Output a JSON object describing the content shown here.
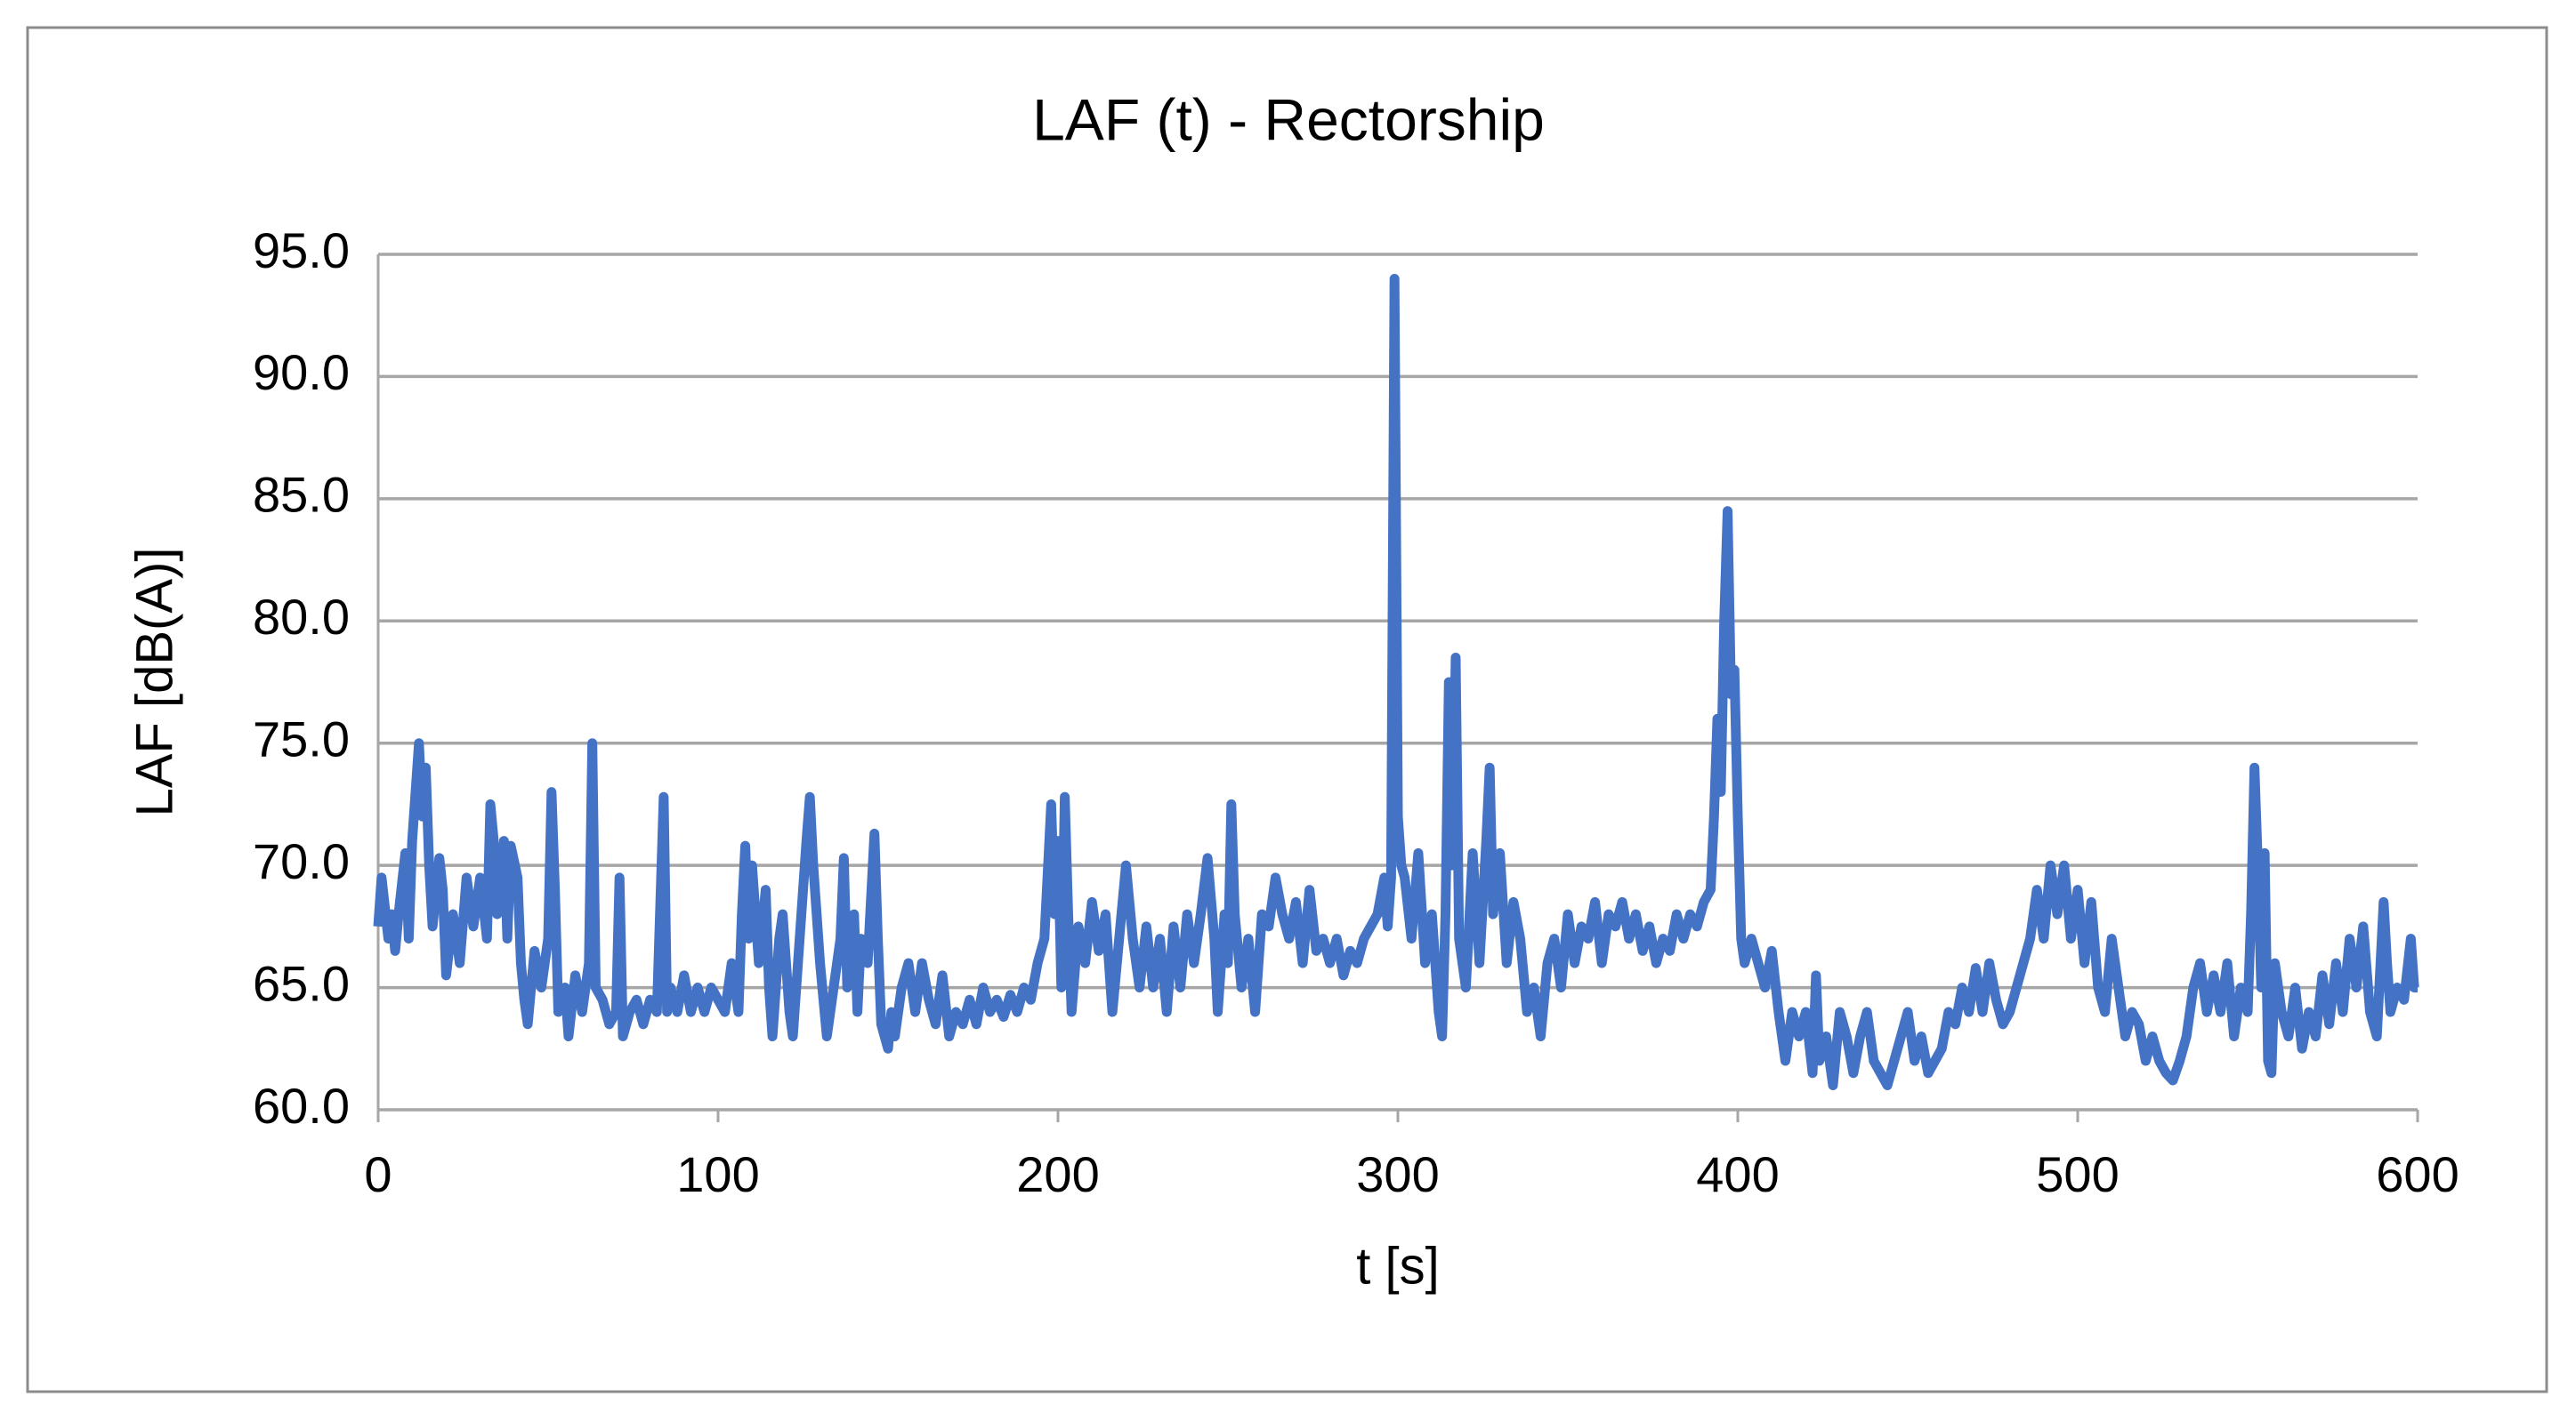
{
  "chart_data": {
    "type": "line",
    "title": "LAF (t) - Rectorship",
    "x_label": "t [s]",
    "y_label": "LAF [dB(A)]",
    "xlim": [
      0,
      600
    ],
    "xticks": [
      0,
      100,
      200,
      300,
      400,
      500,
      600
    ],
    "ylim": [
      60,
      95
    ],
    "yticks": [
      {
        "value": 60,
        "label": "60.0"
      },
      {
        "value": 65,
        "label": "65.0"
      },
      {
        "value": 70,
        "label": "70.0"
      },
      {
        "value": 75,
        "label": "75.0"
      },
      {
        "value": 80,
        "label": "80.0"
      },
      {
        "value": 85,
        "label": "85.0"
      },
      {
        "value": 90,
        "label": "90.0"
      },
      {
        "value": 95,
        "label": "95.0"
      }
    ],
    "grid": true,
    "series": [
      {
        "color": "#4472c4",
        "x": [
          0,
          1,
          3,
          4,
          5,
          6,
          8,
          9,
          10,
          11,
          12,
          13,
          14,
          15,
          16,
          18,
          19,
          20,
          22,
          24,
          26,
          28,
          30,
          32,
          33,
          34,
          35,
          37,
          38,
          39,
          41,
          42,
          43,
          44,
          46,
          48,
          50,
          51,
          52,
          53,
          55,
          56,
          58,
          60,
          62,
          63,
          64,
          66,
          68,
          70,
          71,
          72,
          74,
          76,
          78,
          80,
          82,
          84,
          85,
          86,
          88,
          90,
          92,
          94,
          96,
          98,
          100,
          102,
          104,
          106,
          107,
          108,
          109,
          110,
          112,
          114,
          115,
          116,
          118,
          119,
          121,
          122,
          124,
          126,
          127,
          128,
          129,
          130,
          132,
          134,
          136,
          137,
          138,
          140,
          141,
          142,
          144,
          146,
          147,
          148,
          150,
          151,
          152,
          154,
          156,
          158,
          160,
          162,
          164,
          166,
          168,
          170,
          172,
          174,
          176,
          178,
          180,
          182,
          184,
          186,
          188,
          190,
          192,
          194,
          196,
          198,
          199,
          200,
          201,
          202,
          203,
          204,
          206,
          208,
          210,
          212,
          214,
          216,
          218,
          220,
          222,
          224,
          226,
          228,
          230,
          232,
          234,
          236,
          238,
          240,
          242,
          244,
          246,
          247,
          249,
          250,
          251,
          252,
          254,
          256,
          258,
          260,
          262,
          264,
          266,
          268,
          270,
          272,
          274,
          276,
          278,
          280,
          282,
          284,
          286,
          288,
          290,
          292,
          294,
          296,
          297,
          298,
          299,
          300,
          301,
          302,
          304,
          306,
          308,
          310,
          312,
          313,
          314,
          315,
          316,
          317,
          318,
          320,
          322,
          324,
          326,
          327,
          328,
          330,
          332,
          334,
          336,
          338,
          340,
          342,
          344,
          346,
          348,
          350,
          352,
          354,
          356,
          358,
          360,
          362,
          364,
          366,
          368,
          370,
          372,
          374,
          376,
          378,
          380,
          382,
          384,
          386,
          388,
          390,
          392,
          393,
          394,
          395,
          396,
          397,
          398,
          399,
          400,
          401,
          402,
          404,
          406,
          408,
          410,
          412,
          414,
          416,
          418,
          420,
          422,
          423,
          424,
          426,
          428,
          430,
          432,
          434,
          436,
          438,
          440,
          442,
          444,
          446,
          448,
          450,
          452,
          454,
          456,
          458,
          460,
          462,
          464,
          466,
          468,
          470,
          472,
          474,
          476,
          478,
          480,
          482,
          484,
          486,
          488,
          490,
          492,
          494,
          496,
          498,
          500,
          502,
          504,
          506,
          508,
          510,
          512,
          514,
          516,
          518,
          520,
          522,
          524,
          526,
          528,
          530,
          532,
          534,
          536,
          538,
          540,
          542,
          544,
          546,
          548,
          550,
          551,
          552,
          553,
          554,
          555,
          556,
          557,
          558,
          560,
          562,
          564,
          566,
          568,
          570,
          572,
          574,
          576,
          578,
          580,
          582,
          584,
          586,
          588,
          590,
          591,
          592,
          594,
          596,
          598,
          599,
          600
        ],
        "values": [
          67.5,
          69.5,
          67,
          68,
          66.5,
          68,
          70.5,
          67,
          71,
          73,
          75,
          72,
          74,
          70,
          67.5,
          70.3,
          69,
          65.5,
          68,
          66,
          69.5,
          67.5,
          69.5,
          67,
          72.5,
          71,
          68,
          71,
          67,
          70.8,
          69.5,
          66,
          64.5,
          63.5,
          66.5,
          65,
          67,
          73,
          69,
          64,
          65,
          63,
          65.5,
          64,
          66,
          75,
          65,
          64.5,
          63.5,
          64,
          69.5,
          63,
          64,
          64.5,
          63.5,
          64.5,
          64,
          72.8,
          64,
          65,
          64,
          65.5,
          64,
          65,
          64,
          65,
          64.5,
          64,
          66,
          64,
          68,
          70.8,
          67,
          70,
          66,
          69,
          65,
          63,
          67,
          68,
          64,
          63,
          67,
          71,
          72.8,
          70,
          68,
          66,
          63,
          65,
          67,
          70.3,
          65,
          68,
          64,
          67,
          66,
          71.3,
          67,
          63.5,
          62.5,
          64,
          63,
          65,
          66,
          64,
          66,
          64.5,
          63.5,
          65.5,
          63,
          64,
          63.5,
          64.5,
          63.5,
          65,
          64,
          64.5,
          63.8,
          64.7,
          64,
          65,
          64.5,
          66,
          67,
          72.5,
          68,
          71,
          65,
          72.8,
          68,
          64,
          67.5,
          66,
          68.5,
          66.5,
          68,
          64,
          67,
          70,
          67,
          65,
          67.5,
          65,
          67,
          64,
          67.5,
          65,
          68,
          66,
          68,
          70.3,
          67,
          64,
          68,
          66,
          72.5,
          68,
          65,
          67,
          64,
          68,
          67.5,
          69.5,
          68,
          67,
          68.5,
          66,
          69,
          66.5,
          67,
          66,
          67,
          65.5,
          66.5,
          66,
          67,
          67.5,
          68,
          69.5,
          67.5,
          69.5,
          94,
          72,
          70,
          69.5,
          67,
          70.5,
          66,
          68,
          64,
          63,
          68,
          77.5,
          70,
          78.5,
          67,
          65,
          70.5,
          66,
          71,
          74,
          68,
          70.5,
          66,
          68.5,
          67,
          64,
          65,
          63,
          66,
          67,
          65,
          68,
          66,
          67.5,
          67,
          68.5,
          66,
          68,
          67.5,
          68.5,
          67,
          68,
          66.5,
          67.5,
          66,
          67,
          66.5,
          68,
          67,
          68,
          67.5,
          68.5,
          69,
          72,
          76,
          73,
          80,
          84.5,
          77,
          78,
          72,
          67,
          66,
          67,
          66,
          65,
          66.5,
          64,
          62,
          64,
          63,
          64,
          61.5,
          65.5,
          62,
          63,
          61,
          64,
          63,
          61.5,
          63,
          64,
          62,
          61.5,
          61,
          62,
          63,
          64,
          62,
          63,
          61.5,
          62,
          62.5,
          64,
          63.5,
          65,
          64,
          65.8,
          64,
          66,
          64.5,
          63.5,
          64,
          65,
          66,
          67,
          69,
          67,
          70,
          68,
          70,
          67,
          69,
          66,
          68.5,
          65,
          64,
          67,
          65,
          63,
          64,
          63.5,
          62,
          63,
          62,
          61.5,
          61.2,
          62,
          63,
          65,
          66,
          64,
          65.5,
          64,
          66,
          63,
          65,
          64,
          68,
          74,
          70,
          65,
          70.5,
          62,
          61.5,
          66,
          64,
          63,
          65,
          62.5,
          64,
          63,
          65.5,
          63.5,
          66,
          64,
          67,
          65,
          67.5,
          64,
          63,
          68.5,
          66,
          64,
          65,
          64.5,
          67,
          65,
          65
        ]
      }
    ]
  }
}
